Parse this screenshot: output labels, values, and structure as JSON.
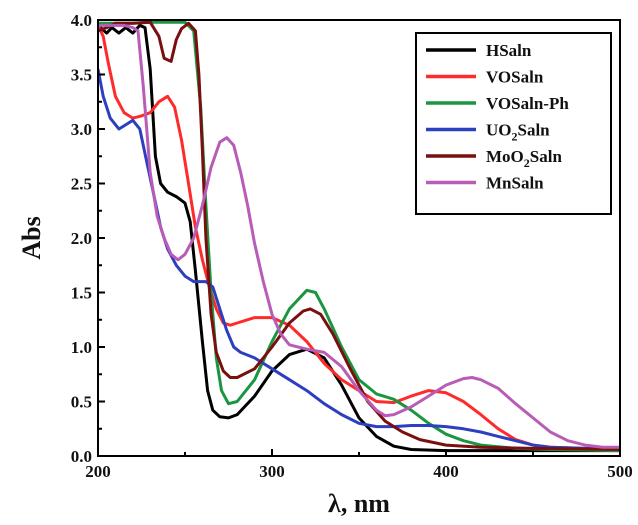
{
  "chart_data": {
    "type": "line",
    "title": "",
    "xlabel": "λ, nm",
    "ylabel": "Abs",
    "xlim": [
      200,
      500
    ],
    "ylim": [
      0,
      4.0
    ],
    "x_ticks": [
      "200",
      "300",
      "400",
      "500"
    ],
    "y_ticks": [
      "0.0",
      "0.5",
      "1.0",
      "1.5",
      "2.0",
      "2.5",
      "3.0",
      "3.5",
      "4.0"
    ],
    "grid": false,
    "legend_position": "top-right",
    "series": [
      {
        "name": "HSaln",
        "name_main": "HSaln",
        "name_sub": "",
        "name_rest": "",
        "color": "#000000",
        "points": [
          [
            200,
            3.95
          ],
          [
            205,
            3.88
          ],
          [
            208,
            3.93
          ],
          [
            212,
            3.88
          ],
          [
            216,
            3.93
          ],
          [
            220,
            3.88
          ],
          [
            224,
            3.95
          ],
          [
            227,
            3.93
          ],
          [
            230,
            3.55
          ],
          [
            233,
            2.75
          ],
          [
            236,
            2.5
          ],
          [
            240,
            2.42
          ],
          [
            245,
            2.38
          ],
          [
            250,
            2.32
          ],
          [
            253,
            2.15
          ],
          [
            256,
            1.7
          ],
          [
            260,
            1.05
          ],
          [
            263,
            0.6
          ],
          [
            266,
            0.42
          ],
          [
            270,
            0.36
          ],
          [
            275,
            0.35
          ],
          [
            280,
            0.38
          ],
          [
            290,
            0.55
          ],
          [
            300,
            0.78
          ],
          [
            310,
            0.93
          ],
          [
            320,
            0.98
          ],
          [
            330,
            0.9
          ],
          [
            340,
            0.65
          ],
          [
            350,
            0.35
          ],
          [
            360,
            0.18
          ],
          [
            370,
            0.09
          ],
          [
            380,
            0.06
          ],
          [
            400,
            0.05
          ],
          [
            450,
            0.05
          ],
          [
            500,
            0.05
          ]
        ]
      },
      {
        "name": "VOSaln",
        "name_main": "VOSaln",
        "name_sub": "",
        "name_rest": "",
        "color": "#ff2a2a",
        "points": [
          [
            200,
            3.95
          ],
          [
            203,
            3.85
          ],
          [
            206,
            3.6
          ],
          [
            210,
            3.3
          ],
          [
            215,
            3.15
          ],
          [
            220,
            3.1
          ],
          [
            225,
            3.12
          ],
          [
            230,
            3.15
          ],
          [
            235,
            3.25
          ],
          [
            240,
            3.3
          ],
          [
            244,
            3.2
          ],
          [
            248,
            2.9
          ],
          [
            252,
            2.5
          ],
          [
            256,
            2.1
          ],
          [
            260,
            1.8
          ],
          [
            264,
            1.55
          ],
          [
            268,
            1.35
          ],
          [
            272,
            1.22
          ],
          [
            276,
            1.2
          ],
          [
            280,
            1.22
          ],
          [
            290,
            1.27
          ],
          [
            300,
            1.27
          ],
          [
            310,
            1.2
          ],
          [
            320,
            1.05
          ],
          [
            330,
            0.85
          ],
          [
            340,
            0.7
          ],
          [
            350,
            0.6
          ],
          [
            360,
            0.5
          ],
          [
            370,
            0.49
          ],
          [
            380,
            0.55
          ],
          [
            390,
            0.6
          ],
          [
            400,
            0.58
          ],
          [
            410,
            0.5
          ],
          [
            420,
            0.38
          ],
          [
            430,
            0.25
          ],
          [
            440,
            0.15
          ],
          [
            450,
            0.1
          ],
          [
            460,
            0.08
          ],
          [
            480,
            0.07
          ],
          [
            500,
            0.07
          ]
        ]
      },
      {
        "name": "VOSaln-Ph",
        "name_main": "VOSaln-Ph",
        "name_sub": "",
        "name_rest": "",
        "color": "#1a9641",
        "points": [
          [
            200,
            3.97
          ],
          [
            220,
            3.97
          ],
          [
            230,
            3.98
          ],
          [
            240,
            3.98
          ],
          [
            250,
            3.98
          ],
          [
            255,
            3.9
          ],
          [
            259,
            3.2
          ],
          [
            262,
            2.3
          ],
          [
            265,
            1.5
          ],
          [
            268,
            0.9
          ],
          [
            271,
            0.6
          ],
          [
            275,
            0.48
          ],
          [
            280,
            0.5
          ],
          [
            290,
            0.7
          ],
          [
            300,
            1.05
          ],
          [
            310,
            1.35
          ],
          [
            320,
            1.52
          ],
          [
            325,
            1.5
          ],
          [
            330,
            1.35
          ],
          [
            340,
            1.0
          ],
          [
            350,
            0.7
          ],
          [
            360,
            0.57
          ],
          [
            370,
            0.52
          ],
          [
            380,
            0.42
          ],
          [
            390,
            0.3
          ],
          [
            400,
            0.2
          ],
          [
            410,
            0.14
          ],
          [
            420,
            0.1
          ],
          [
            440,
            0.07
          ],
          [
            460,
            0.06
          ],
          [
            500,
            0.05
          ]
        ]
      },
      {
        "name": "UO₂Saln",
        "name_main": "UO",
        "name_sub": "2",
        "name_rest": "Saln",
        "color": "#2c3fbf",
        "points": [
          [
            200,
            3.55
          ],
          [
            203,
            3.3
          ],
          [
            207,
            3.1
          ],
          [
            212,
            3.0
          ],
          [
            217,
            3.05
          ],
          [
            220,
            3.08
          ],
          [
            224,
            3.0
          ],
          [
            228,
            2.7
          ],
          [
            232,
            2.4
          ],
          [
            236,
            2.1
          ],
          [
            240,
            1.9
          ],
          [
            245,
            1.75
          ],
          [
            250,
            1.65
          ],
          [
            255,
            1.6
          ],
          [
            262,
            1.6
          ],
          [
            266,
            1.55
          ],
          [
            270,
            1.35
          ],
          [
            274,
            1.15
          ],
          [
            278,
            1.0
          ],
          [
            282,
            0.95
          ],
          [
            290,
            0.9
          ],
          [
            300,
            0.8
          ],
          [
            310,
            0.7
          ],
          [
            320,
            0.6
          ],
          [
            330,
            0.48
          ],
          [
            340,
            0.38
          ],
          [
            350,
            0.3
          ],
          [
            360,
            0.27
          ],
          [
            370,
            0.27
          ],
          [
            380,
            0.28
          ],
          [
            390,
            0.28
          ],
          [
            400,
            0.27
          ],
          [
            410,
            0.25
          ],
          [
            420,
            0.22
          ],
          [
            430,
            0.18
          ],
          [
            440,
            0.14
          ],
          [
            450,
            0.1
          ],
          [
            460,
            0.08
          ],
          [
            480,
            0.07
          ],
          [
            500,
            0.07
          ]
        ]
      },
      {
        "name": "MoO₂Saln",
        "name_main": "MoO",
        "name_sub": "2",
        "name_rest": "Saln",
        "color": "#7a0f0f",
        "points": [
          [
            200,
            3.9
          ],
          [
            205,
            3.93
          ],
          [
            210,
            3.97
          ],
          [
            220,
            3.97
          ],
          [
            230,
            3.98
          ],
          [
            235,
            3.85
          ],
          [
            238,
            3.65
          ],
          [
            242,
            3.62
          ],
          [
            245,
            3.82
          ],
          [
            248,
            3.92
          ],
          [
            252,
            3.97
          ],
          [
            256,
            3.9
          ],
          [
            258,
            3.5
          ],
          [
            260,
            2.8
          ],
          [
            262,
            2.0
          ],
          [
            265,
            1.3
          ],
          [
            268,
            0.95
          ],
          [
            272,
            0.78
          ],
          [
            276,
            0.72
          ],
          [
            280,
            0.72
          ],
          [
            290,
            0.8
          ],
          [
            300,
            1.0
          ],
          [
            310,
            1.22
          ],
          [
            318,
            1.33
          ],
          [
            322,
            1.35
          ],
          [
            328,
            1.3
          ],
          [
            335,
            1.12
          ],
          [
            345,
            0.8
          ],
          [
            355,
            0.5
          ],
          [
            365,
            0.32
          ],
          [
            375,
            0.22
          ],
          [
            385,
            0.15
          ],
          [
            400,
            0.1
          ],
          [
            420,
            0.08
          ],
          [
            450,
            0.07
          ],
          [
            500,
            0.06
          ]
        ]
      },
      {
        "name": "MnSaln",
        "name_main": "MnSaln",
        "name_sub": "",
        "name_rest": "",
        "color": "#b85cb8",
        "points": [
          [
            200,
            3.95
          ],
          [
            205,
            3.95
          ],
          [
            210,
            3.95
          ],
          [
            215,
            3.95
          ],
          [
            220,
            3.93
          ],
          [
            223,
            3.9
          ],
          [
            226,
            3.4
          ],
          [
            230,
            2.6
          ],
          [
            234,
            2.2
          ],
          [
            238,
            2.0
          ],
          [
            242,
            1.85
          ],
          [
            246,
            1.8
          ],
          [
            250,
            1.85
          ],
          [
            255,
            2.0
          ],
          [
            260,
            2.3
          ],
          [
            265,
            2.65
          ],
          [
            270,
            2.88
          ],
          [
            274,
            2.92
          ],
          [
            278,
            2.85
          ],
          [
            282,
            2.6
          ],
          [
            286,
            2.3
          ],
          [
            290,
            1.95
          ],
          [
            295,
            1.6
          ],
          [
            300,
            1.3
          ],
          [
            305,
            1.12
          ],
          [
            310,
            1.02
          ],
          [
            320,
            0.98
          ],
          [
            330,
            0.95
          ],
          [
            340,
            0.82
          ],
          [
            350,
            0.6
          ],
          [
            360,
            0.42
          ],
          [
            365,
            0.37
          ],
          [
            370,
            0.38
          ],
          [
            380,
            0.45
          ],
          [
            390,
            0.55
          ],
          [
            400,
            0.65
          ],
          [
            410,
            0.71
          ],
          [
            415,
            0.72
          ],
          [
            420,
            0.7
          ],
          [
            430,
            0.62
          ],
          [
            440,
            0.48
          ],
          [
            450,
            0.35
          ],
          [
            460,
            0.22
          ],
          [
            470,
            0.14
          ],
          [
            480,
            0.1
          ],
          [
            490,
            0.08
          ],
          [
            500,
            0.08
          ]
        ]
      }
    ]
  }
}
